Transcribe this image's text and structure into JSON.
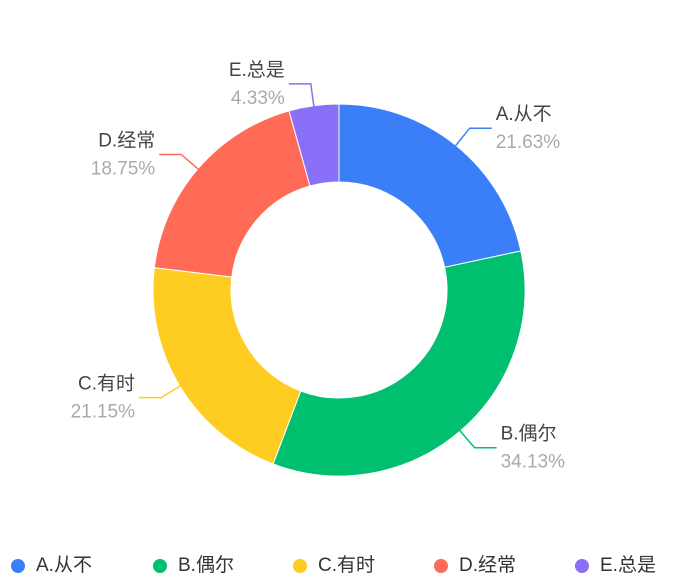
{
  "chart_data": {
    "type": "donut",
    "categories": [
      "A.从不",
      "B.偶尔",
      "C.有时",
      "D.经常",
      "E.总是"
    ],
    "values": [
      21.63,
      34.13,
      21.15,
      18.75,
      4.33
    ],
    "value_labels": [
      "21.63%",
      "34.13%",
      "21.15%",
      "18.75%",
      "4.33%"
    ],
    "colors": [
      "#3a7ef8",
      "#00c070",
      "#ffcc22",
      "#ff6b57",
      "#8a6ff8"
    ],
    "legend": "bottom"
  }
}
